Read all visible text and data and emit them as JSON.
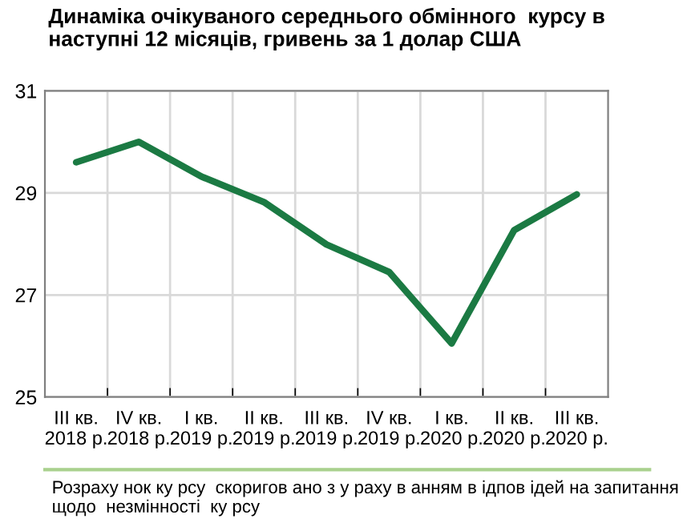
{
  "chart_data": {
    "type": "line",
    "title": "Динаміка очікуваного середнього обмінного  курсу в наступні 12 місяців, гривень за 1 долар США",
    "categories": [
      "III кв.\n2018 р.",
      "IV кв.\n2018 р.",
      "I кв.\n2019 р.",
      "II кв.\n2019 р.",
      "III кв.\n2019 р.",
      "IV кв.\n2019 р.",
      "I кв.\n2020 р.",
      "II кв.\n2020 р.",
      "III кв.\n2020 р."
    ],
    "series": [
      {
        "color": "#1b7a43",
        "values": [
          29.6,
          30.0,
          29.32,
          28.82,
          27.99,
          27.45,
          26.05,
          28.27,
          28.97
        ]
      }
    ],
    "ylim": [
      25,
      31
    ],
    "yticks": [
      25,
      27,
      29,
      31
    ],
    "grid": true,
    "marker": "none",
    "line_style": "solid",
    "annotations": [
      "Розраху нок ку рсу  скоригов ано з у раху в анням в ідпов ідей на запитання щодо  незмінності  ку рсу"
    ]
  }
}
